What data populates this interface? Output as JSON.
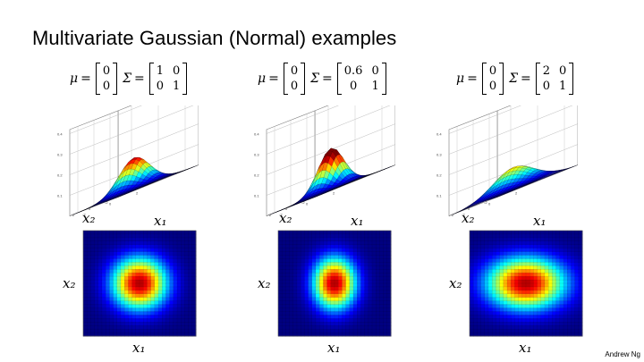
{
  "title": "Multivariate Gaussian (Normal) examples",
  "footer": "Andrew Ng",
  "formulas": [
    {
      "mu_label": "μ",
      "sigma_label": "Σ",
      "eq": "=",
      "mu": [
        "0",
        "0"
      ],
      "sigma": [
        [
          "1",
          "0"
        ],
        [
          "0",
          "1"
        ]
      ]
    },
    {
      "mu_label": "μ",
      "sigma_label": "Σ",
      "eq": "=",
      "mu": [
        "0",
        "0"
      ],
      "sigma": [
        [
          "0.6",
          "0"
        ],
        [
          "0",
          "1"
        ]
      ]
    },
    {
      "mu_label": "μ",
      "sigma_label": "Σ",
      "eq": "=",
      "mu": [
        "0",
        "0"
      ],
      "sigma": [
        [
          "2",
          "0"
        ],
        [
          "0",
          "1"
        ]
      ]
    }
  ],
  "axis_labels": {
    "x1": "x₁",
    "x2": "x₂"
  },
  "chart_data": [
    {
      "type": "surface",
      "mean": [
        0,
        0
      ],
      "covariance": [
        [
          1,
          0
        ],
        [
          0,
          1
        ]
      ],
      "zticks": [
        "0.1",
        "0.2",
        "0.3",
        "0.4"
      ]
    },
    {
      "type": "surface",
      "mean": [
        0,
        0
      ],
      "covariance": [
        [
          0.6,
          0
        ],
        [
          0,
          1
        ]
      ],
      "zticks": [
        "0.1",
        "0.2",
        "0.3",
        "0.4"
      ]
    },
    {
      "type": "surface",
      "mean": [
        0,
        0
      ],
      "covariance": [
        [
          2,
          0
        ],
        [
          0,
          1
        ]
      ],
      "zticks": [
        "0.1",
        "0.2",
        "0.3",
        "0.4"
      ]
    },
    {
      "type": "heatmap",
      "mean": [
        0,
        0
      ],
      "covariance": [
        [
          1,
          0
        ],
        [
          0,
          1
        ]
      ]
    },
    {
      "type": "heatmap",
      "mean": [
        0,
        0
      ],
      "covariance": [
        [
          0.6,
          0
        ],
        [
          0,
          1
        ]
      ]
    },
    {
      "type": "heatmap",
      "mean": [
        0,
        0
      ],
      "covariance": [
        [
          2,
          0
        ],
        [
          0,
          1
        ]
      ]
    }
  ],
  "colors": {
    "low": "#00007f",
    "mid": "#7fff7f",
    "high": "#7f0000"
  }
}
